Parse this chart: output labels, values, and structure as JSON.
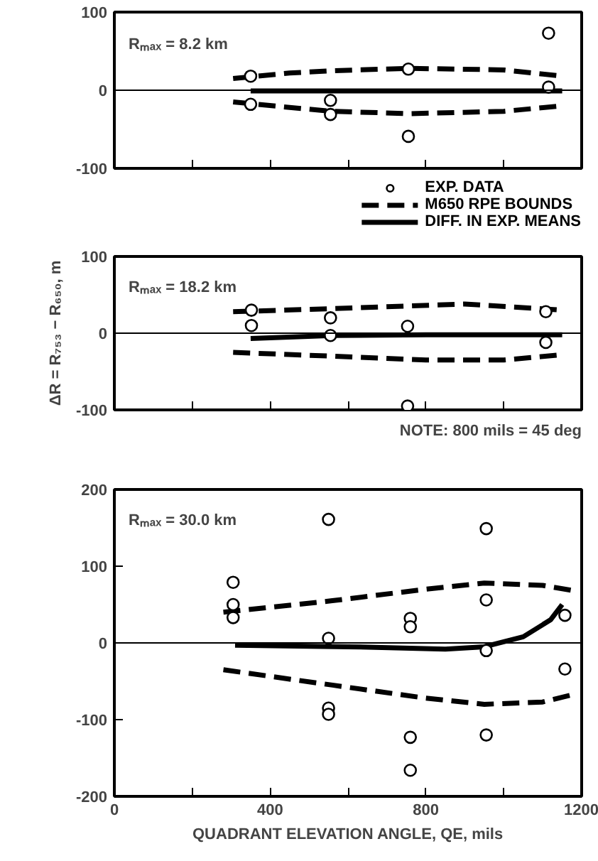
{
  "chart_data": [
    {
      "type": "scatter",
      "annotations": [
        "Rₘₐₓ = 8.2 km"
      ],
      "xlim": [
        0,
        1200
      ],
      "ylim": [
        -100,
        100
      ],
      "xticks": [
        {
          "value": 0,
          "label": null
        },
        {
          "value": 200,
          "label": null
        },
        {
          "value": 400,
          "label": null
        },
        {
          "value": 600,
          "label": null
        },
        {
          "value": 800,
          "label": null
        },
        {
          "value": 1000,
          "label": null
        },
        {
          "value": 1200,
          "label": null
        }
      ],
      "yticks": [
        -100,
        0,
        100
      ],
      "tick_labels": "y",
      "grid": false,
      "legend": "bottom",
      "ref_lines": [
        {
          "axis": "y",
          "value": 0,
          "label": null
        }
      ],
      "series": [
        {
          "name": "EXP. DATA",
          "color": "#000000",
          "marker": "circle",
          "x": [
            350,
            350,
            555,
            555,
            755,
            755,
            1115,
            1115
          ],
          "values": [
            18,
            -18,
            -13,
            -31,
            27,
            -59,
            73,
            4
          ]
        },
        {
          "type": "line",
          "name": "M650 RPE BOUNDS",
          "color": "#000000",
          "line_style": "dashed",
          "x": [
            305,
            450,
            560,
            760,
            1000,
            1150
          ],
          "values": [
            15,
            22,
            25,
            28,
            26,
            18
          ]
        },
        {
          "type": "line",
          "color": "#000000",
          "line_style": "dashed",
          "x": [
            305,
            450,
            560,
            760,
            1000,
            1150
          ],
          "values": [
            -15,
            -22,
            -27,
            -30,
            -27,
            -20
          ]
        },
        {
          "type": "line",
          "name": "DIFF. IN EXP. MEANS",
          "color": "#000000",
          "line_style": "solid",
          "x": [
            350,
            760,
            1150
          ],
          "values": [
            -1,
            -1,
            -1
          ]
        }
      ]
    },
    {
      "type": "scatter",
      "annotations": [
        "Rₘₐₓ = 18.2 km",
        "NOTE: 800 mils = 45 deg"
      ],
      "ylabel": "ΔR = R₇₅₃ − R₆₅₀, m",
      "xlim": [
        0,
        1200
      ],
      "ylim": [
        -100,
        100
      ],
      "xticks": [
        {
          "value": 0,
          "label": null
        },
        {
          "value": 200,
          "label": null
        },
        {
          "value": 400,
          "label": null
        },
        {
          "value": 600,
          "label": null
        },
        {
          "value": 800,
          "label": null
        },
        {
          "value": 1000,
          "label": null
        },
        {
          "value": 1200,
          "label": null
        }
      ],
      "yticks": [
        -100,
        0,
        100
      ],
      "tick_labels": "y",
      "grid": false,
      "ref_lines": [
        {
          "axis": "y",
          "value": 0,
          "label": null
        }
      ],
      "series": [
        {
          "color": "#000000",
          "marker": "circle",
          "x": [
            352,
            352,
            555,
            555,
            753,
            753,
            1108,
            1108
          ],
          "values": [
            30,
            10,
            20,
            -3,
            9,
            -95,
            28,
            -12
          ]
        },
        {
          "type": "line",
          "color": "#000000",
          "line_style": "dashed",
          "x": [
            305,
            560,
            900,
            1150
          ],
          "values": [
            28,
            32,
            38,
            30
          ]
        },
        {
          "type": "line",
          "color": "#000000",
          "line_style": "dashed",
          "x": [
            305,
            560,
            800,
            1000,
            1150
          ],
          "values": [
            -25,
            -30,
            -35,
            -35,
            -28
          ]
        },
        {
          "type": "line",
          "color": "#000000",
          "line_style": "solid",
          "x": [
            350,
            560,
            800,
            1150
          ],
          "values": [
            -7,
            -3,
            -2,
            -2
          ]
        }
      ]
    },
    {
      "type": "scatter",
      "annotations": [
        "Rₘₐₓ = 30.0 km"
      ],
      "xlabel": "QUADRANT ELEVATION ANGLE, QE, mils",
      "xlim": [
        0,
        1200
      ],
      "ylim": [
        -200,
        200
      ],
      "xticks": [
        0,
        {
          "value": 200,
          "label": null
        },
        400,
        {
          "value": 600,
          "label": null
        },
        800,
        {
          "value": 1000,
          "label": null
        },
        1200
      ],
      "yticks": [
        -200,
        -100,
        0,
        100,
        200
      ],
      "grid": false,
      "ref_lines": [
        {
          "axis": "y",
          "value": 0,
          "label": null
        }
      ],
      "series": [
        {
          "color": "#000000",
          "marker": "circle",
          "x": [
            305,
            305,
            305,
            550,
            550,
            550,
            550,
            760,
            760,
            760,
            760,
            955,
            955,
            955,
            955,
            1157,
            1157
          ],
          "values": [
            79,
            50,
            33,
            161,
            6,
            -85,
            -93,
            32,
            21,
            -123,
            -166,
            149,
            56,
            -10,
            -120,
            36,
            -34
          ]
        },
        {
          "type": "line",
          "color": "#000000",
          "line_style": "dashed",
          "x": [
            280,
            560,
            800,
            950,
            1100,
            1180
          ],
          "values": [
            40,
            55,
            70,
            78,
            75,
            68
          ]
        },
        {
          "type": "line",
          "color": "#000000",
          "line_style": "dashed",
          "x": [
            280,
            560,
            800,
            950,
            1100,
            1180
          ],
          "values": [
            -35,
            -55,
            -72,
            -80,
            -77,
            -67
          ]
        },
        {
          "type": "line",
          "color": "#000000",
          "line_style": "solid",
          "x": [
            310,
            600,
            850,
            950,
            1050,
            1120,
            1150
          ],
          "values": [
            -3,
            -5,
            -8,
            -5,
            8,
            30,
            50
          ]
        }
      ]
    }
  ]
}
